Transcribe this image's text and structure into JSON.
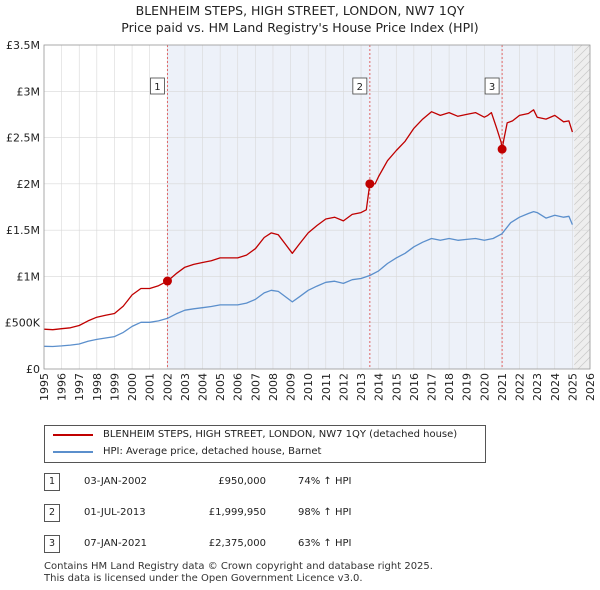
{
  "title": {
    "line1": "BLENHEIM STEPS, HIGH STREET, LONDON, NW7 1QY",
    "line2": "Price paid vs. HM Land Registry's House Price Index (HPI)"
  },
  "colors": {
    "property": "#c00000",
    "hpi": "#5b8fcc",
    "shade": "#dfe6f4",
    "grid": "#d8d8d8",
    "marker_line": "#e06666"
  },
  "chart_data": {
    "type": "line",
    "title": "Price paid vs. HM Land Registry's House Price Index (HPI)",
    "xlim": [
      1995,
      2026
    ],
    "ylim": [
      0,
      3500000
    ],
    "x_ticks": [
      "1995",
      "1996",
      "1997",
      "1998",
      "1999",
      "2000",
      "2001",
      "2002",
      "2003",
      "2004",
      "2005",
      "2006",
      "2007",
      "2008",
      "2009",
      "2010",
      "2011",
      "2012",
      "2013",
      "2014",
      "2015",
      "2016",
      "2017",
      "2018",
      "2019",
      "2020",
      "2021",
      "2022",
      "2023",
      "2024",
      "2025",
      "2026"
    ],
    "y_ticks": [
      {
        "value": 0,
        "label": "£0"
      },
      {
        "value": 500000,
        "label": "£500K"
      },
      {
        "value": 1000000,
        "label": "£1M"
      },
      {
        "value": 1500000,
        "label": "£1.5M"
      },
      {
        "value": 2000000,
        "label": "£2M"
      },
      {
        "value": 2500000,
        "label": "£2.5M"
      },
      {
        "value": 3000000,
        "label": "£3M"
      },
      {
        "value": 3500000,
        "label": "£3.5M"
      }
    ],
    "forecast_start": 2025.1,
    "series": [
      {
        "name": "BLENHEIM STEPS, HIGH STREET, LONDON, NW7 1QY (detached house)",
        "x": [
          1995.0,
          1995.5,
          1996.0,
          1996.5,
          1997.0,
          1997.5,
          1998.0,
          1998.5,
          1999.0,
          1999.5,
          2000.0,
          2000.5,
          2001.0,
          2001.5,
          2002.01,
          2002.5,
          2003.0,
          2003.5,
          2004.0,
          2004.5,
          2005.0,
          2005.5,
          2006.0,
          2006.5,
          2007.0,
          2007.5,
          2007.9,
          2008.3,
          2008.7,
          2009.1,
          2009.5,
          2010.0,
          2010.5,
          2011.0,
          2011.5,
          2012.0,
          2012.5,
          2013.0,
          2013.3,
          2013.5,
          2013.8,
          2014.0,
          2014.5,
          2015.0,
          2015.5,
          2016.0,
          2016.5,
          2017.0,
          2017.5,
          2018.0,
          2018.5,
          2019.0,
          2019.5,
          2020.0,
          2020.2,
          2020.4,
          2020.7,
          2020.95,
          2021.01,
          2021.1,
          2021.3,
          2021.6,
          2022.0,
          2022.5,
          2022.8,
          2023.0,
          2023.5,
          2024.0,
          2024.5,
          2024.8,
          2025.0
        ],
        "y": [
          430000,
          425000,
          435000,
          445000,
          470000,
          520000,
          560000,
          580000,
          600000,
          680000,
          800000,
          870000,
          870000,
          900000,
          950000,
          1030000,
          1100000,
          1130000,
          1150000,
          1170000,
          1200000,
          1200000,
          1200000,
          1230000,
          1300000,
          1420000,
          1470000,
          1450000,
          1350000,
          1250000,
          1350000,
          1470000,
          1550000,
          1620000,
          1640000,
          1600000,
          1670000,
          1690000,
          1720000,
          1999950,
          2000000,
          2080000,
          2250000,
          2360000,
          2460000,
          2600000,
          2700000,
          2780000,
          2740000,
          2770000,
          2730000,
          2750000,
          2770000,
          2720000,
          2740000,
          2770000,
          2600000,
          2450000,
          2375000,
          2470000,
          2660000,
          2680000,
          2740000,
          2760000,
          2800000,
          2720000,
          2700000,
          2740000,
          2670000,
          2680000,
          2560000
        ]
      },
      {
        "name": "HPI: Average price, detached house, Barnet",
        "x": [
          1995.0,
          1995.5,
          1996.0,
          1996.5,
          1997.0,
          1997.5,
          1998.0,
          1998.5,
          1999.0,
          1999.5,
          2000.0,
          2000.5,
          2001.0,
          2001.5,
          2002.0,
          2002.5,
          2003.0,
          2003.5,
          2004.0,
          2004.5,
          2005.0,
          2005.5,
          2006.0,
          2006.5,
          2007.0,
          2007.5,
          2007.9,
          2008.3,
          2008.7,
          2009.1,
          2009.5,
          2010.0,
          2010.5,
          2011.0,
          2011.5,
          2012.0,
          2012.5,
          2013.0,
          2013.5,
          2014.0,
          2014.5,
          2015.0,
          2015.5,
          2016.0,
          2016.5,
          2017.0,
          2017.5,
          2018.0,
          2018.5,
          2019.0,
          2019.5,
          2020.0,
          2020.5,
          2021.0,
          2021.5,
          2022.0,
          2022.5,
          2022.8,
          2023.0,
          2023.5,
          2024.0,
          2024.5,
          2024.8,
          2025.0
        ],
        "y": [
          245000,
          243000,
          250000,
          258000,
          270000,
          300000,
          320000,
          335000,
          350000,
          395000,
          460000,
          505000,
          505000,
          520000,
          547000,
          595000,
          635000,
          650000,
          662000,
          675000,
          692000,
          692000,
          692000,
          712000,
          752000,
          822000,
          850000,
          838000,
          782000,
          725000,
          780000,
          850000,
          895000,
          937000,
          948000,
          925000,
          965000,
          978000,
          1010000,
          1060000,
          1140000,
          1200000,
          1250000,
          1320000,
          1370000,
          1410000,
          1390000,
          1410000,
          1390000,
          1400000,
          1410000,
          1390000,
          1410000,
          1460000,
          1580000,
          1640000,
          1680000,
          1700000,
          1690000,
          1630000,
          1660000,
          1640000,
          1650000,
          1560000
        ]
      }
    ],
    "sales": [
      {
        "num": "1",
        "x": 2002.01,
        "y": 950000
      },
      {
        "num": "2",
        "x": 2013.5,
        "y": 1999950
      },
      {
        "num": "3",
        "x": 2021.01,
        "y": 2375000
      }
    ]
  },
  "legend": {
    "property_label": "BLENHEIM STEPS, HIGH STREET, LONDON, NW7 1QY (detached house)",
    "hpi_label": "HPI: Average price, detached house, Barnet"
  },
  "sales_table": [
    {
      "num": "1",
      "date": "03-JAN-2002",
      "price": "£950,000",
      "hpi": "74% ↑ HPI"
    },
    {
      "num": "2",
      "date": "01-JUL-2013",
      "price": "£1,999,950",
      "hpi": "98% ↑ HPI"
    },
    {
      "num": "3",
      "date": "07-JAN-2021",
      "price": "£2,375,000",
      "hpi": "63% ↑ HPI"
    }
  ],
  "footer": {
    "line1": "Contains HM Land Registry data © Crown copyright and database right 2025.",
    "line2": "This data is licensed under the Open Government Licence v3.0."
  }
}
